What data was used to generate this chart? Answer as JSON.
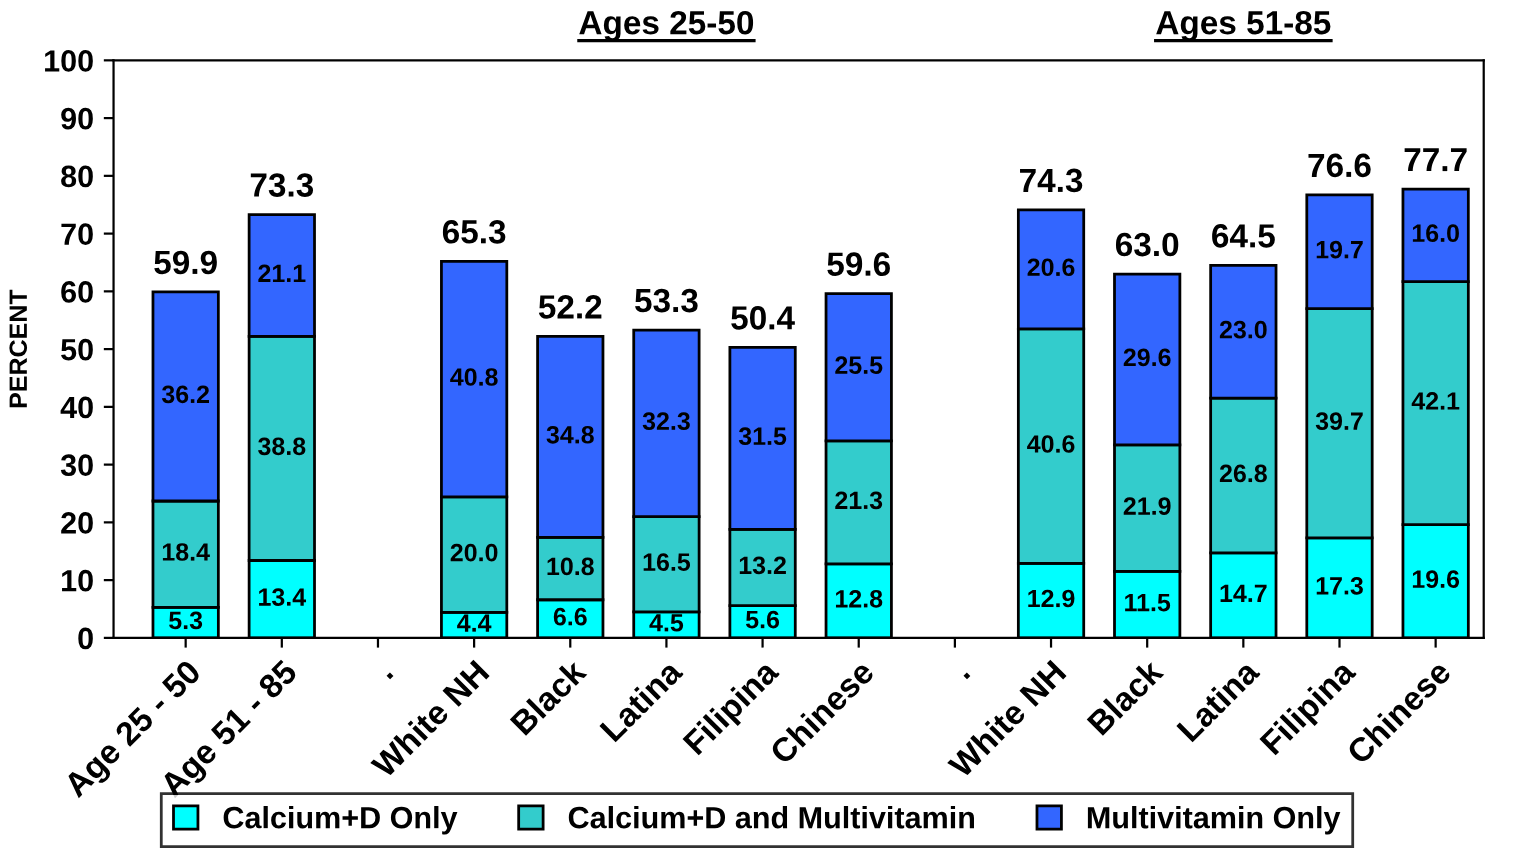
{
  "chart_data": {
    "type": "bar",
    "stacked": true,
    "ylabel": "PERCENT",
    "categories": [
      "Age 25 - 50",
      "Age 51 - 85",
      ".",
      "White NH",
      "Black",
      "Latina",
      "Filipina",
      "Chinese",
      ".",
      "White NH",
      "Black",
      "Latina",
      "Filipina",
      "Chinese"
    ],
    "series": [
      {
        "name": "Calcium+D Only",
        "color": "#00ffff",
        "values": [
          5.3,
          13.4,
          null,
          4.4,
          6.6,
          4.5,
          5.6,
          12.8,
          null,
          12.9,
          11.5,
          14.7,
          17.3,
          19.6
        ],
        "value_labels": [
          "5.3",
          "13.4",
          null,
          "4.4",
          "6.6",
          "4.5",
          "5.6",
          "12.8",
          null,
          "12.9",
          "11.5",
          "14.7",
          "17.3",
          "19.6"
        ]
      },
      {
        "name": "Calcium+D and Multivitamin",
        "color": "#33cccc",
        "values": [
          18.4,
          38.8,
          null,
          20.0,
          10.8,
          16.5,
          13.2,
          21.3,
          null,
          40.6,
          21.9,
          26.8,
          39.7,
          42.1
        ],
        "value_labels": [
          "18.4",
          "38.8",
          null,
          "20.0",
          "10.8",
          "16.5",
          "13.2",
          "21.3",
          null,
          "40.6",
          "21.9",
          "26.8",
          "39.7",
          "42.1"
        ]
      },
      {
        "name": "Multivitamin Only",
        "color": "#3366ff",
        "values": [
          36.2,
          21.1,
          null,
          40.8,
          34.8,
          32.3,
          31.5,
          25.5,
          null,
          20.6,
          29.6,
          23.0,
          19.7,
          16.0
        ],
        "value_labels": [
          "36.2",
          "21.1",
          null,
          "40.8",
          "34.8",
          "32.3",
          "31.5",
          "25.5",
          null,
          "20.6",
          "29.6",
          "23.0",
          "19.7",
          "16.0"
        ]
      }
    ],
    "totals": [
      "59.9",
      "73.3",
      null,
      "65.3",
      "52.2",
      "53.3",
      "50.4",
      "59.6",
      null,
      "74.3",
      "63.0",
      "64.5",
      "76.6",
      "77.7"
    ],
    "annotations": [
      "Ages 25-50",
      "Ages 51-85"
    ],
    "ylim": [
      0,
      100
    ],
    "yticks": [
      0,
      10,
      20,
      30,
      40,
      50,
      60,
      70,
      80,
      90,
      100
    ],
    "grid": false,
    "legend": "bottom"
  }
}
